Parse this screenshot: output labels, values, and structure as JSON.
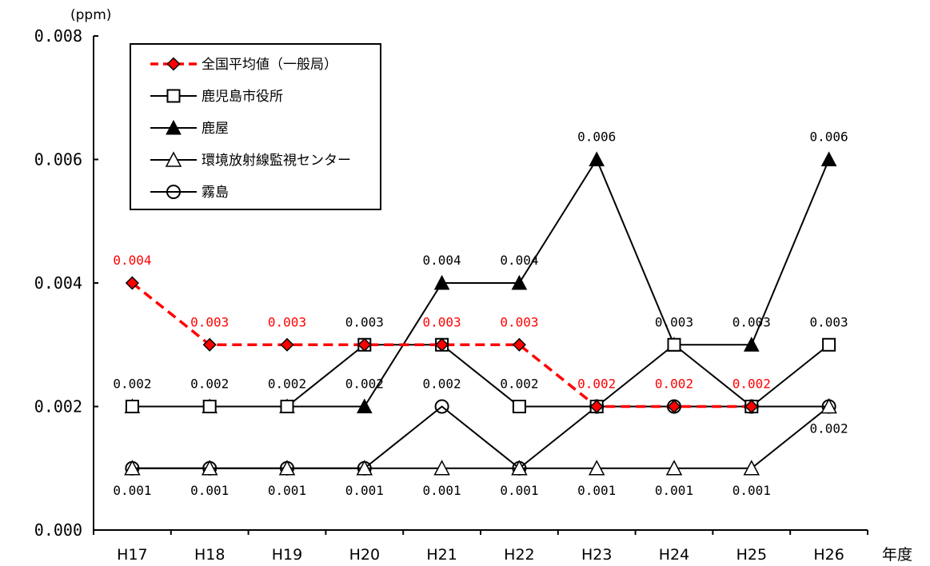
{
  "chart_data": {
    "type": "line",
    "ylabel": "(ppm)",
    "xlabel": "年度",
    "ylim": [
      0,
      0.008
    ],
    "y_ticks": [
      "0.000",
      "0.002",
      "0.004",
      "0.006",
      "0.008"
    ],
    "categories": [
      "H17",
      "H18",
      "H19",
      "H20",
      "H21",
      "H22",
      "H23",
      "H24",
      "H25",
      "H26"
    ],
    "legend_position": "top-left",
    "series": [
      {
        "name": "全国平均値（一般局）",
        "color": "#ff0000",
        "line": "dashed",
        "marker": "diamond-filled-red",
        "values": [
          0.004,
          0.003,
          0.003,
          0.003,
          0.003,
          0.003,
          0.002,
          0.002,
          0.002,
          null
        ]
      },
      {
        "name": "鹿児島市役所",
        "color": "#000000",
        "line": "solid",
        "marker": "square-open",
        "values": [
          0.002,
          0.002,
          0.002,
          0.003,
          0.003,
          0.002,
          0.002,
          0.003,
          0.002,
          0.003
        ]
      },
      {
        "name": "鹿屋",
        "color": "#000000",
        "line": "solid",
        "marker": "triangle-filled",
        "values": [
          0.002,
          0.002,
          0.002,
          0.002,
          0.004,
          0.004,
          0.006,
          0.003,
          0.003,
          0.006
        ]
      },
      {
        "name": "環境放射線監視センター",
        "color": "#000000",
        "line": "solid",
        "marker": "triangle-open",
        "values": [
          0.001,
          0.001,
          0.001,
          0.001,
          0.001,
          0.001,
          0.001,
          0.001,
          0.001,
          0.002
        ]
      },
      {
        "name": "霧島",
        "color": "#000000",
        "line": "solid",
        "marker": "circle-open",
        "values": [
          0.001,
          0.001,
          0.001,
          0.001,
          0.002,
          0.001,
          0.002,
          0.002,
          0.002,
          0.002
        ]
      }
    ],
    "data_labels": [
      {
        "text": "0.004",
        "color": "#ff0000",
        "cat": 0,
        "value": 0.004,
        "pos": "above"
      },
      {
        "text": "0.003",
        "color": "#ff0000",
        "cat": 1,
        "value": 0.003,
        "pos": "above"
      },
      {
        "text": "0.003",
        "color": "#ff0000",
        "cat": 2,
        "value": 0.003,
        "pos": "above"
      },
      {
        "text": "0.003",
        "color": "#000000",
        "cat": 3,
        "value": 0.003,
        "pos": "above"
      },
      {
        "text": "0.003",
        "color": "#ff0000",
        "cat": 4,
        "value": 0.003,
        "pos": "above"
      },
      {
        "text": "0.003",
        "color": "#ff0000",
        "cat": 5,
        "value": 0.003,
        "pos": "above"
      },
      {
        "text": "0.002",
        "color": "#ff0000",
        "cat": 6,
        "value": 0.002,
        "pos": "above"
      },
      {
        "text": "0.002",
        "color": "#ff0000",
        "cat": 7,
        "value": 0.002,
        "pos": "above"
      },
      {
        "text": "0.002",
        "color": "#ff0000",
        "cat": 8,
        "value": 0.002,
        "pos": "above"
      },
      {
        "text": "0.002",
        "color": "#000000",
        "cat": 0,
        "value": 0.002,
        "pos": "above"
      },
      {
        "text": "0.002",
        "color": "#000000",
        "cat": 1,
        "value": 0.002,
        "pos": "above"
      },
      {
        "text": "0.002",
        "color": "#000000",
        "cat": 2,
        "value": 0.002,
        "pos": "above"
      },
      {
        "text": "0.002",
        "color": "#000000",
        "cat": 3,
        "value": 0.002,
        "pos": "above"
      },
      {
        "text": "0.002",
        "color": "#000000",
        "cat": 4,
        "value": 0.002,
        "pos": "above"
      },
      {
        "text": "0.002",
        "color": "#000000",
        "cat": 5,
        "value": 0.002,
        "pos": "above"
      },
      {
        "text": "0.004",
        "color": "#000000",
        "cat": 4,
        "value": 0.004,
        "pos": "above"
      },
      {
        "text": "0.004",
        "color": "#000000",
        "cat": 5,
        "value": 0.004,
        "pos": "above"
      },
      {
        "text": "0.006",
        "color": "#000000",
        "cat": 6,
        "value": 0.006,
        "pos": "above"
      },
      {
        "text": "0.003",
        "color": "#000000",
        "cat": 7,
        "value": 0.003,
        "pos": "above"
      },
      {
        "text": "0.003",
        "color": "#000000",
        "cat": 8,
        "value": 0.003,
        "pos": "above"
      },
      {
        "text": "0.006",
        "color": "#000000",
        "cat": 9,
        "value": 0.006,
        "pos": "above"
      },
      {
        "text": "0.003",
        "color": "#000000",
        "cat": 9,
        "value": 0.003,
        "pos": "above"
      },
      {
        "text": "0.002",
        "color": "#000000",
        "cat": 9,
        "value": 0.002,
        "pos": "below"
      },
      {
        "text": "0.001",
        "color": "#000000",
        "cat": 0,
        "value": 0.001,
        "pos": "below"
      },
      {
        "text": "0.001",
        "color": "#000000",
        "cat": 1,
        "value": 0.001,
        "pos": "below"
      },
      {
        "text": "0.001",
        "color": "#000000",
        "cat": 2,
        "value": 0.001,
        "pos": "below"
      },
      {
        "text": "0.001",
        "color": "#000000",
        "cat": 3,
        "value": 0.001,
        "pos": "below"
      },
      {
        "text": "0.001",
        "color": "#000000",
        "cat": 4,
        "value": 0.001,
        "pos": "below"
      },
      {
        "text": "0.001",
        "color": "#000000",
        "cat": 5,
        "value": 0.001,
        "pos": "below"
      },
      {
        "text": "0.001",
        "color": "#000000",
        "cat": 6,
        "value": 0.001,
        "pos": "below"
      },
      {
        "text": "0.001",
        "color": "#000000",
        "cat": 7,
        "value": 0.001,
        "pos": "below"
      },
      {
        "text": "0.001",
        "color": "#000000",
        "cat": 8,
        "value": 0.001,
        "pos": "below"
      }
    ]
  }
}
